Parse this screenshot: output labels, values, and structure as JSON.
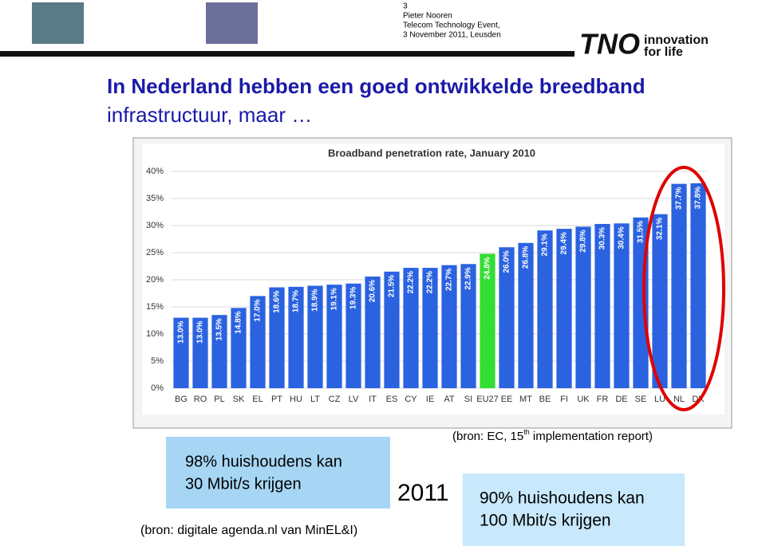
{
  "header": {
    "page": "3",
    "author": "Pieter Nooren",
    "event": "Telecom Technology Event,",
    "date": "3 November 2011, Leusden",
    "logo": "TNO",
    "tagline_1": "innovation",
    "tagline_2": "for life"
  },
  "title_lines": [
    "In Nederland hebben een goed ontwikkelde breedband",
    "infrastructuur, maar …"
  ],
  "chart_data": {
    "type": "bar",
    "title": "Broadband penetration rate, January 2010",
    "categories": [
      "BG",
      "RO",
      "PL",
      "SK",
      "EL",
      "PT",
      "HU",
      "LT",
      "CZ",
      "LV",
      "IT",
      "ES",
      "CY",
      "IE",
      "AT",
      "SI",
      "EU27",
      "EE",
      "MT",
      "BE",
      "FI",
      "UK",
      "FR",
      "DE",
      "SE",
      "LU",
      "NL",
      "DK"
    ],
    "values": [
      13.0,
      13.0,
      13.5,
      14.8,
      17.0,
      18.6,
      18.7,
      18.9,
      19.1,
      19.3,
      20.6,
      21.5,
      22.2,
      22.2,
      22.7,
      22.9,
      24.8,
      26.0,
      26.8,
      29.1,
      29.4,
      29.8,
      30.3,
      30.4,
      31.5,
      32.1,
      37.7,
      37.8
    ],
    "value_labels": [
      "13.0%",
      "13.0%",
      "13.5%",
      "14.8%",
      "17.0%",
      "18.6%",
      "18.7%",
      "18.9%",
      "19.1%",
      "19.3%",
      "20.6%",
      "21.5%",
      "22.2%",
      "22.2%",
      "22.7%",
      "22.9%",
      "24.8%",
      "26.0%",
      "26.8%",
      "29.1%",
      "29.4%",
      "29.8%",
      "30.3%",
      "30.4%",
      "31.5%",
      "32.1%",
      "37.7%",
      "37.8%"
    ],
    "color": "#2a62e0",
    "highlight": {
      "category": "EU27",
      "color": "#33dd33"
    },
    "ylim": [
      0,
      40
    ],
    "yticks": [
      {
        "value": 0,
        "label": "0%"
      },
      {
        "value": 5,
        "label": "5%"
      },
      {
        "value": 10,
        "label": "10%"
      },
      {
        "value": 15,
        "label": "15%"
      },
      {
        "value": 20,
        "label": "20%"
      },
      {
        "value": 25,
        "label": "25%"
      },
      {
        "value": 30,
        "label": "30%"
      },
      {
        "value": 35,
        "label": "35%"
      },
      {
        "value": 40,
        "label": "40%"
      }
    ],
    "grid": true
  },
  "source_chart": {
    "before": "(bron: EC, 15",
    "sup": "th",
    "after": " implementation report)"
  },
  "box_left": {
    "line_1": "98% huishoudens kan",
    "line_2": "30 Mbit/s krijgen"
  },
  "source_left": "(bron: digitale agenda.nl van MinEL&I)",
  "year": "2011",
  "box_right": {
    "line_1": "90% huishoudens kan",
    "line_2": "100 Mbit/s krijgen"
  }
}
